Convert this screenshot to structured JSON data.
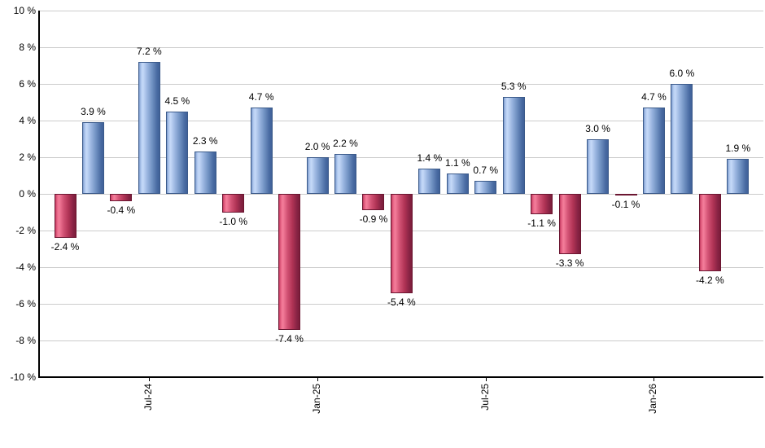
{
  "chart_data": {
    "type": "bar",
    "title": "",
    "xlabel": "",
    "ylabel": "",
    "grid": true,
    "legend": "none",
    "values": [
      -2.4,
      3.9,
      -0.4,
      7.2,
      4.5,
      2.3,
      -1.0,
      4.7,
      -7.4,
      2.0,
      2.2,
      -0.9,
      -5.4,
      1.4,
      1.1,
      0.7,
      5.3,
      -1.1,
      -3.3,
      3.0,
      -0.1,
      4.7,
      6.0,
      -4.2,
      1.9
    ],
    "value_labels": [
      "-2.4 %",
      "3.9 %",
      "-0.4 %",
      "7.2 %",
      "4.5 %",
      "2.3 %",
      "-1.0 %",
      "4.7 %",
      "-7.4 %",
      "2.0 %",
      "2.2 %",
      "-0.9 %",
      "-5.4 %",
      "1.4 %",
      "1.1 %",
      "0.7 %",
      "5.3 %",
      "-1.1 %",
      "-3.3 %",
      "3.0 %",
      "-0.1 %",
      "4.7 %",
      "6.0 %",
      "-4.2 %",
      "1.9 %"
    ],
    "y_axis": {
      "min": -10,
      "max": 10,
      "step": 2,
      "ticks": [
        "10 %",
        "8 %",
        "6 %",
        "4 %",
        "2 %",
        "0 %",
        "-2 %",
        "-4 %",
        "-6 %",
        "-8 %",
        "-10 %"
      ]
    },
    "x_axis": {
      "ticks": [
        {
          "label": "Jul-24",
          "index": 3
        },
        {
          "label": "Jan-25",
          "index": 9
        },
        {
          "label": "Jul-25",
          "index": 15
        },
        {
          "label": "Jan-26",
          "index": 21
        }
      ]
    },
    "colors": {
      "positive_bar": "#6f92c4",
      "negative_bar": "#c43e64",
      "grid": "#cccccc",
      "axis": "#000000",
      "text": "#000000",
      "background": "#ffffff"
    }
  }
}
